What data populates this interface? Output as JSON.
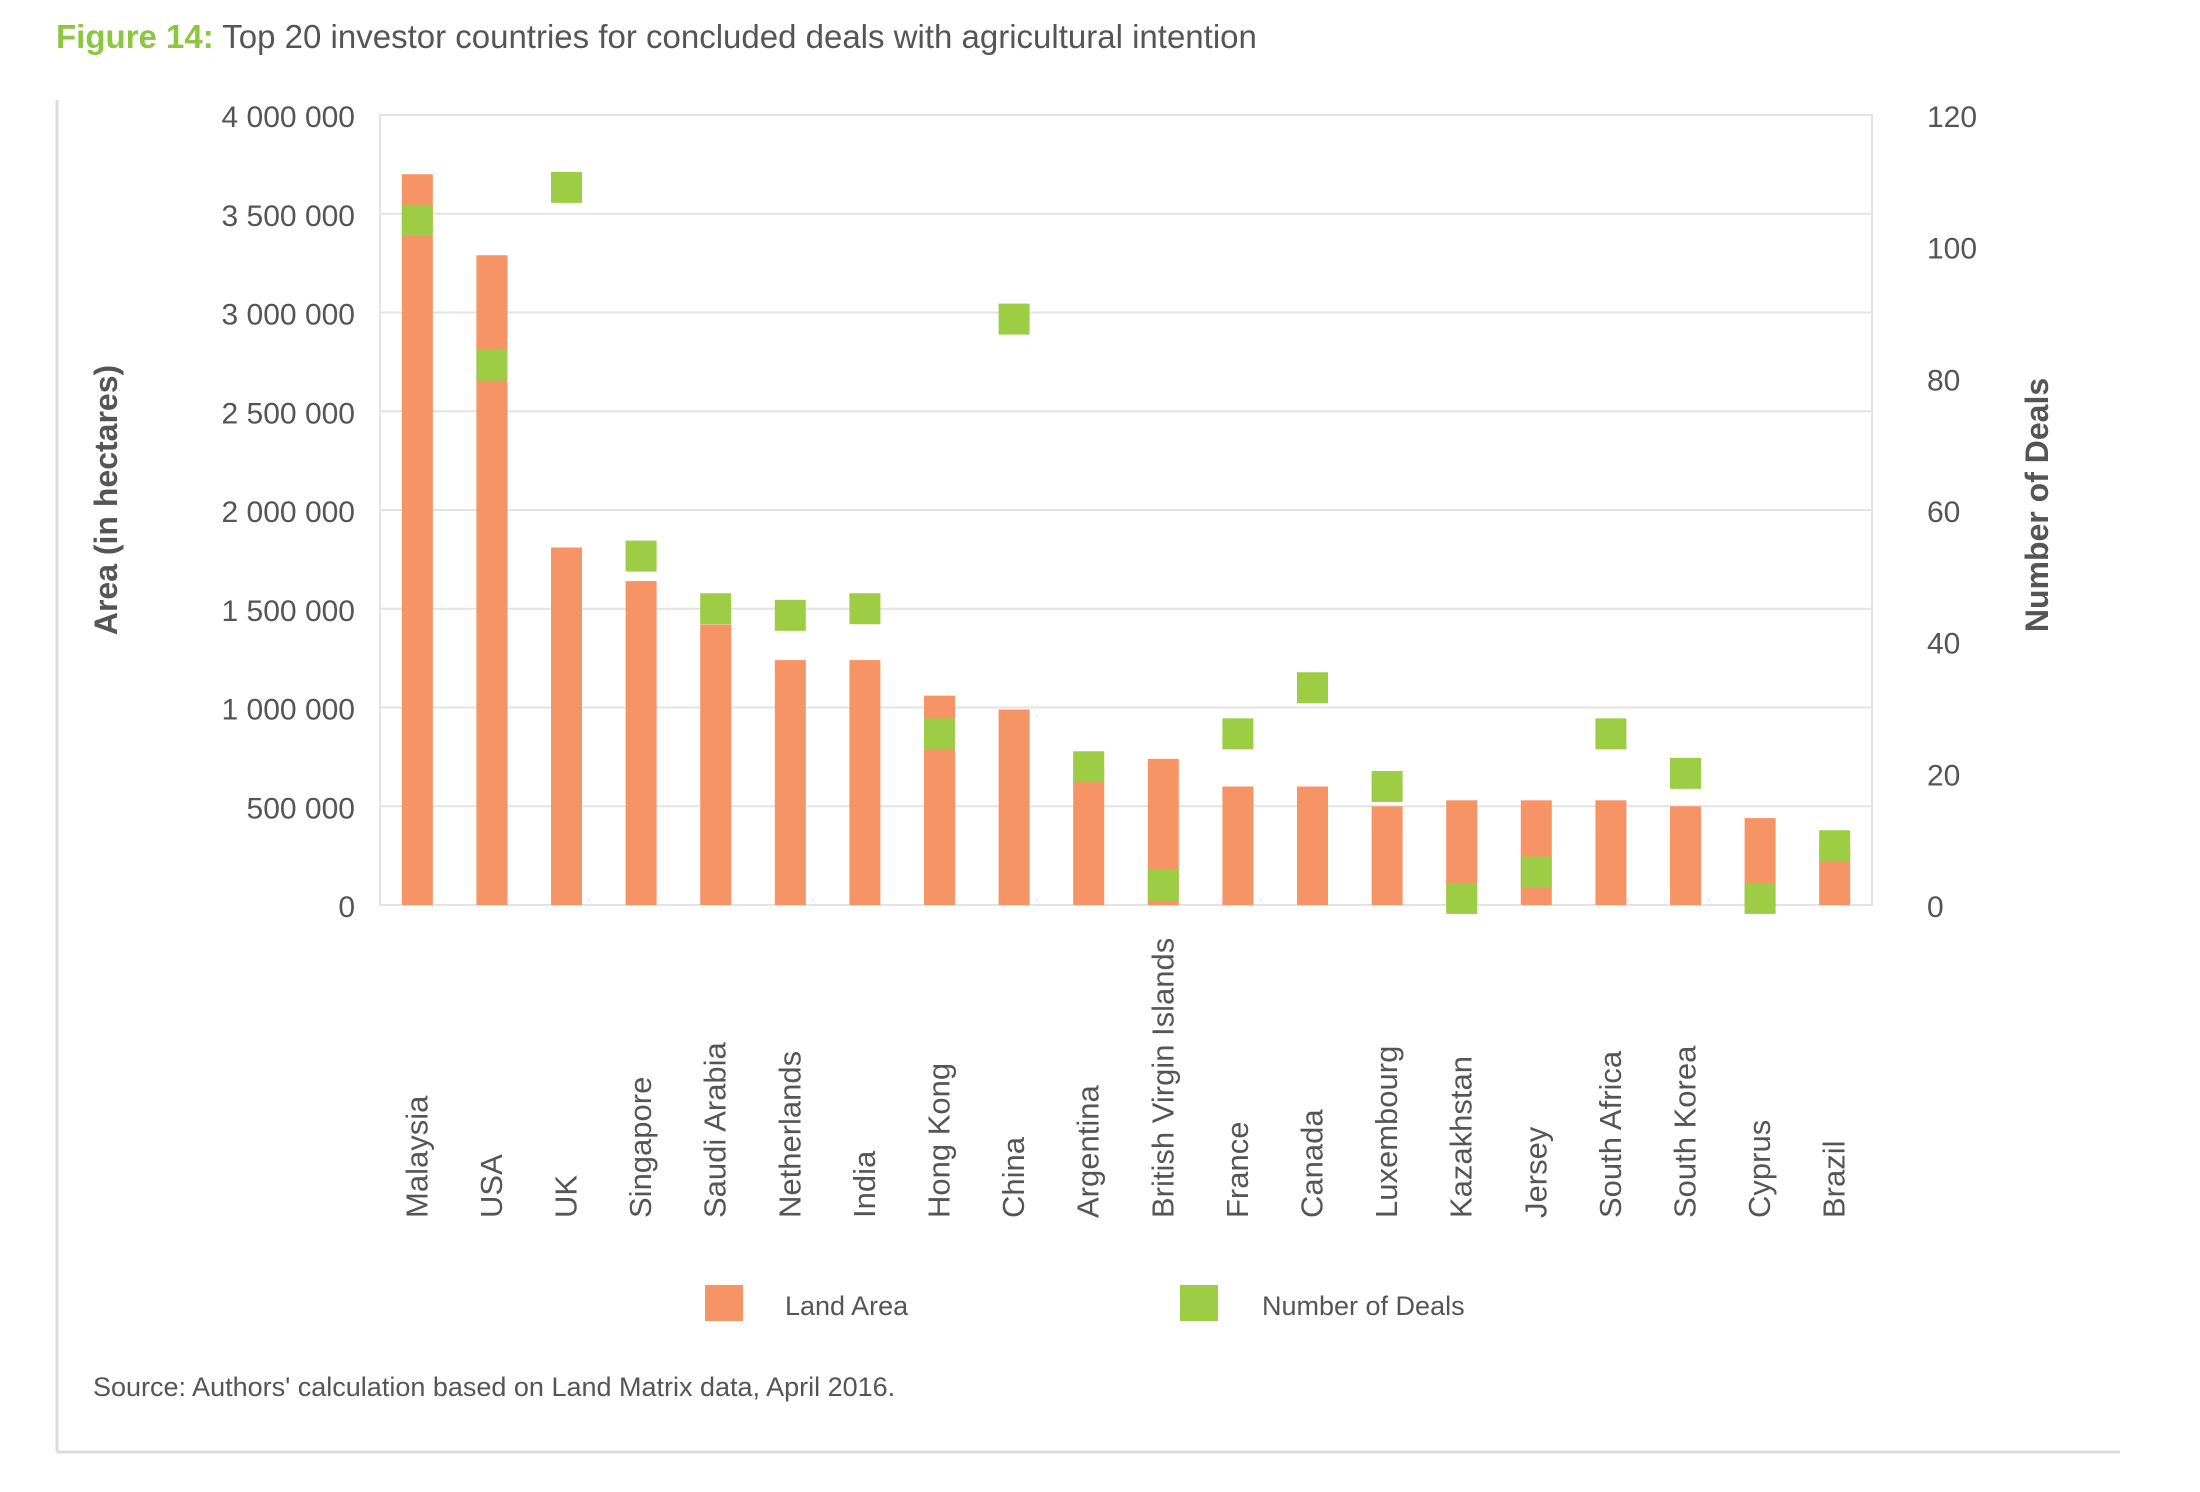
{
  "figure": {
    "label": "Figure 14:",
    "title": "Top 20 investor countries for concluded deals with agricultural intention"
  },
  "source": "Source: Authors' calculation based on Land Matrix data, April 2016.",
  "colors": {
    "land_area": "#f79466",
    "deals": "#9dcd45",
    "grid": "#e3e3e3",
    "axis_text": "#555555",
    "title_accent": "#8dc63f"
  },
  "chart_data": {
    "type": "bar",
    "categories": [
      "Malaysia",
      "USA",
      "UK",
      "Singapore",
      "Saudi Arabia",
      "Netherlands",
      "India",
      "Hong Kong",
      "China",
      "Argentina",
      "British Virgin Islands",
      "France",
      "Canada",
      "Luxembourg",
      "Kazakhstan",
      "Jersey",
      "South Africa",
      "South Korea",
      "Cyprus",
      "Brazil"
    ],
    "series": [
      {
        "name": "Land Area",
        "axis": "left",
        "mark": "bar",
        "values": [
          3700000,
          3290000,
          1810000,
          1640000,
          1420000,
          1240000,
          1240000,
          1060000,
          990000,
          700000,
          740000,
          600000,
          600000,
          500000,
          530000,
          530000,
          530000,
          500000,
          440000,
          310000
        ]
      },
      {
        "name": "Number of Deals",
        "axis": "right",
        "mark": "square",
        "values": [
          104,
          82,
          109,
          53,
          45,
          44,
          45,
          26,
          89,
          21,
          3,
          26,
          33,
          18,
          1,
          5,
          26,
          20,
          1,
          9
        ]
      }
    ],
    "ylabel": "Area (in hectares)",
    "y2label": "Number of Deals",
    "ylim": [
      0,
      4000000
    ],
    "y2lim": [
      0,
      120
    ],
    "yticks": [
      "0",
      "500 000",
      "1 000 000",
      "1 500 000",
      "2 000 000",
      "2 500 000",
      "3 000 000",
      "3 500 000",
      "4 000 000"
    ],
    "y2ticks": [
      "0",
      "20",
      "40",
      "60",
      "80",
      "100",
      "120"
    ],
    "grid": true,
    "legend_position": "bottom"
  }
}
